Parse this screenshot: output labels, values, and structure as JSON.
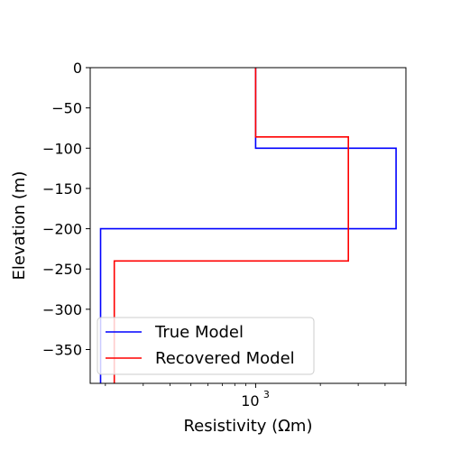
{
  "chart_data": {
    "type": "line",
    "title": "",
    "xlabel": "Resistivity (Ωm)",
    "ylabel": "Elevation (m)",
    "xscale": "log",
    "xlim": [
      170,
      5000
    ],
    "ylim": [
      -392,
      0
    ],
    "x_ticks": [
      {
        "value": 1000,
        "base": "10",
        "exp": "3"
      }
    ],
    "y_ticks": [
      0,
      -50,
      -100,
      -150,
      -200,
      -250,
      -300,
      -350
    ],
    "y_tick_labels": [
      "0",
      "−50",
      "−100",
      "−150",
      "−200",
      "−250",
      "−300",
      "−350"
    ],
    "grid": false,
    "legend_position": "lower-left",
    "series": [
      {
        "name": "True Model",
        "color": "#0000ff",
        "points": [
          [
            1000,
            0
          ],
          [
            1000,
            -100
          ],
          [
            4500,
            -100
          ],
          [
            4500,
            -200
          ],
          [
            190,
            -200
          ],
          [
            190,
            -392
          ]
        ]
      },
      {
        "name": "Recovered Model",
        "color": "#ff0000",
        "points": [
          [
            1000,
            0
          ],
          [
            1000,
            -86
          ],
          [
            2700,
            -86
          ],
          [
            2700,
            -240
          ],
          [
            220,
            -240
          ],
          [
            220,
            -392
          ]
        ]
      }
    ]
  }
}
